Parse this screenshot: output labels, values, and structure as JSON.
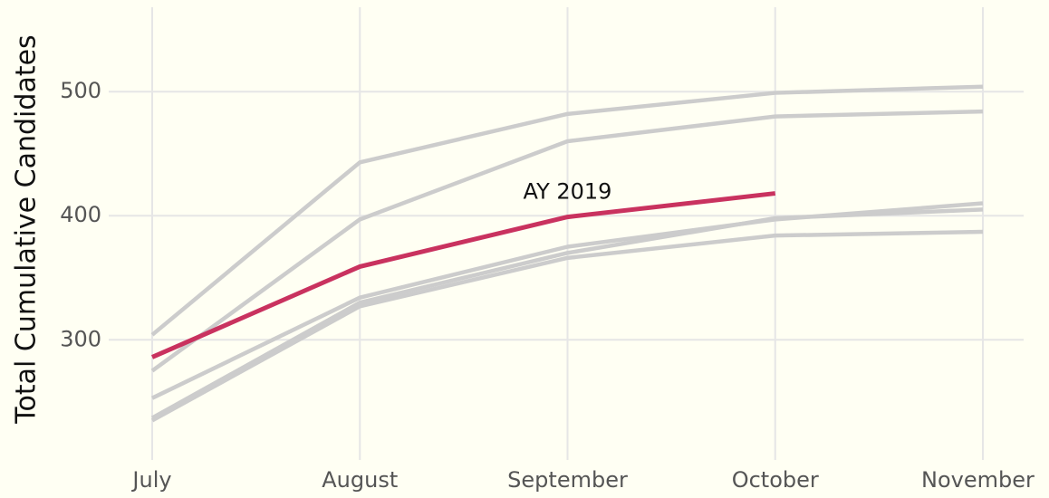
{
  "chart_data": {
    "type": "line",
    "y_label": "Total Cumulative Candidates",
    "categories": [
      "July",
      "August",
      "September",
      "October",
      "November"
    ],
    "series": [
      {
        "color": "#cccccc",
        "values": [
          304,
          443,
          482,
          499,
          504
        ]
      },
      {
        "color": "#cccccc",
        "values": [
          275,
          397,
          460,
          480,
          484
        ]
      },
      {
        "color": "#cccccc",
        "values": [
          253,
          334,
          375,
          397,
          410
        ]
      },
      {
        "color": "#cccccc",
        "values": [
          237,
          330,
          370,
          398,
          405
        ]
      },
      {
        "color": "#cccccc",
        "values": [
          235,
          327,
          366,
          384,
          387
        ]
      },
      {
        "name": "AY 2019",
        "color": "#c9325f",
        "values": [
          286,
          359,
          399,
          418,
          null
        ]
      }
    ],
    "ylim": [
      209,
      568
    ],
    "yticks": [
      300,
      400,
      500
    ],
    "grid": true
  }
}
